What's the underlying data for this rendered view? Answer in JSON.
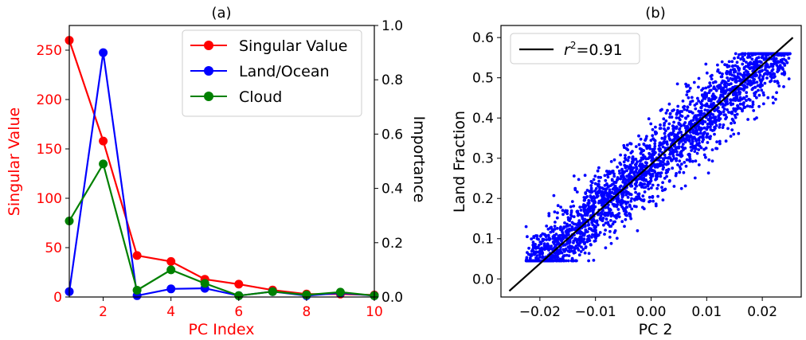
{
  "chart_data": [
    {
      "type": "line",
      "title": "(a)",
      "xlabel": "PC Index",
      "ylabel": "Singular Value",
      "ylabel_right": "Importance",
      "xlim": [
        1,
        10
      ],
      "ylim": [
        0,
        275
      ],
      "ylim_right": [
        0,
        1.0
      ],
      "x_ticks": [
        2,
        4,
        6,
        8,
        10
      ],
      "y_ticks": [
        0,
        50,
        100,
        150,
        200,
        250
      ],
      "y_ticks_right": [
        "0.0",
        "0.2",
        "0.4",
        "0.6",
        "0.8",
        "1.0"
      ],
      "x": [
        1,
        2,
        3,
        4,
        5,
        6,
        7,
        8,
        9,
        10
      ],
      "series": [
        {
          "name": "Singular Value",
          "axis": "left",
          "color": "#ff0000",
          "values": [
            260,
            158,
            42,
            36,
            18,
            13,
            7,
            3,
            3,
            2
          ]
        },
        {
          "name": "Land/Ocean",
          "axis": "right",
          "color": "#0000ff",
          "values": [
            0.02,
            0.9,
            0.005,
            0.03,
            0.032,
            0.005,
            0.02,
            0.005,
            0.015,
            0.005
          ]
        },
        {
          "name": "Cloud",
          "axis": "right",
          "color": "#008000",
          "values": [
            0.28,
            0.49,
            0.025,
            0.1,
            0.05,
            0.005,
            0.02,
            0.008,
            0.018,
            0.005
          ]
        }
      ],
      "legend_position": "top-right",
      "grid": false
    },
    {
      "type": "scatter",
      "title": "(b)",
      "xlabel": "PC 2",
      "ylabel": "Land Fraction",
      "xlim": [
        -0.027,
        0.027
      ],
      "ylim": [
        -0.045,
        0.63
      ],
      "x_ticks": [
        "−0.02",
        "−0.01",
        "0.00",
        "0.01",
        "0.02"
      ],
      "x_tick_values": [
        -0.02,
        -0.01,
        0.0,
        0.01,
        0.02
      ],
      "y_ticks": [
        "0.0",
        "0.1",
        "0.2",
        "0.3",
        "0.4",
        "0.5",
        "0.6"
      ],
      "y_tick_values": [
        0.0,
        0.1,
        0.2,
        0.3,
        0.4,
        0.5,
        0.6
      ],
      "point_color": "#0000ff",
      "fit_line": {
        "x": [
          -0.0255,
          0.0255
        ],
        "y": [
          -0.03,
          0.6
        ],
        "color": "#000000"
      },
      "legend": {
        "label_prefix": "r",
        "label_sup": "2",
        "label_suffix": "=0.91"
      },
      "legend_position": "top-left",
      "grid": false
    }
  ]
}
